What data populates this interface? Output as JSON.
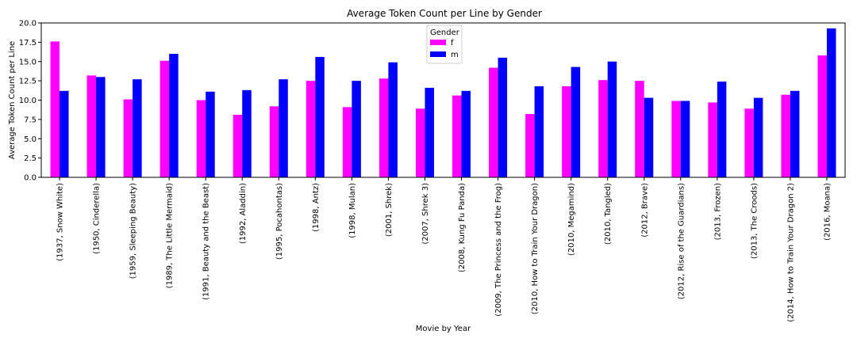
{
  "chart_data": {
    "type": "bar",
    "title": "Average Token Count per Line by Gender",
    "xlabel": "Movie by Year",
    "ylabel": "Average Token Count per Line",
    "ylim": [
      0,
      20
    ],
    "yticks": [
      "0.0",
      "2.5",
      "5.0",
      "7.5",
      "10.0",
      "12.5",
      "15.0",
      "17.5",
      "20.0"
    ],
    "categories": [
      "(1937, Snow White)",
      "(1950, Cinderella)",
      "(1959, Sleeping Beauty)",
      "(1989, The Little Mermaid)",
      "(1991, Beauty and the Beast)",
      "(1992, Aladdin)",
      "(1995, Pocahontas)",
      "(1998, Antz)",
      "(1998, Mulan)",
      "(2001, Shrek)",
      "(2007, Shrek 3)",
      "(2008, Kung Fu Panda)",
      "(2009, The Princess and the Frog)",
      "(2010, How to Train Your Dragon)",
      "(2010, Megamind)",
      "(2010, Tangled)",
      "(2012, Brave)",
      "(2012, Rise of the Guardians)",
      "(2013, Frozen)",
      "(2013, The Croods)",
      "(2014, How to Train Your Dragon 2)",
      "(2016, Moana)"
    ],
    "series": [
      {
        "name": "f",
        "color": "#ff00ff",
        "values": [
          17.6,
          13.2,
          10.1,
          15.1,
          10.0,
          8.1,
          9.2,
          12.5,
          9.1,
          12.8,
          8.9,
          10.6,
          14.2,
          8.2,
          11.8,
          12.6,
          12.5,
          9.9,
          9.7,
          8.9,
          10.7,
          15.8
        ]
      },
      {
        "name": "m",
        "color": "#0000ff",
        "values": [
          11.2,
          13.0,
          12.7,
          16.0,
          11.1,
          11.3,
          12.7,
          15.6,
          12.5,
          14.9,
          11.6,
          11.2,
          15.5,
          11.8,
          14.3,
          15.0,
          10.3,
          9.9,
          12.4,
          10.3,
          11.2,
          19.3
        ]
      }
    ],
    "legend": {
      "title": "Gender",
      "position": "top-center"
    },
    "grid": false
  }
}
